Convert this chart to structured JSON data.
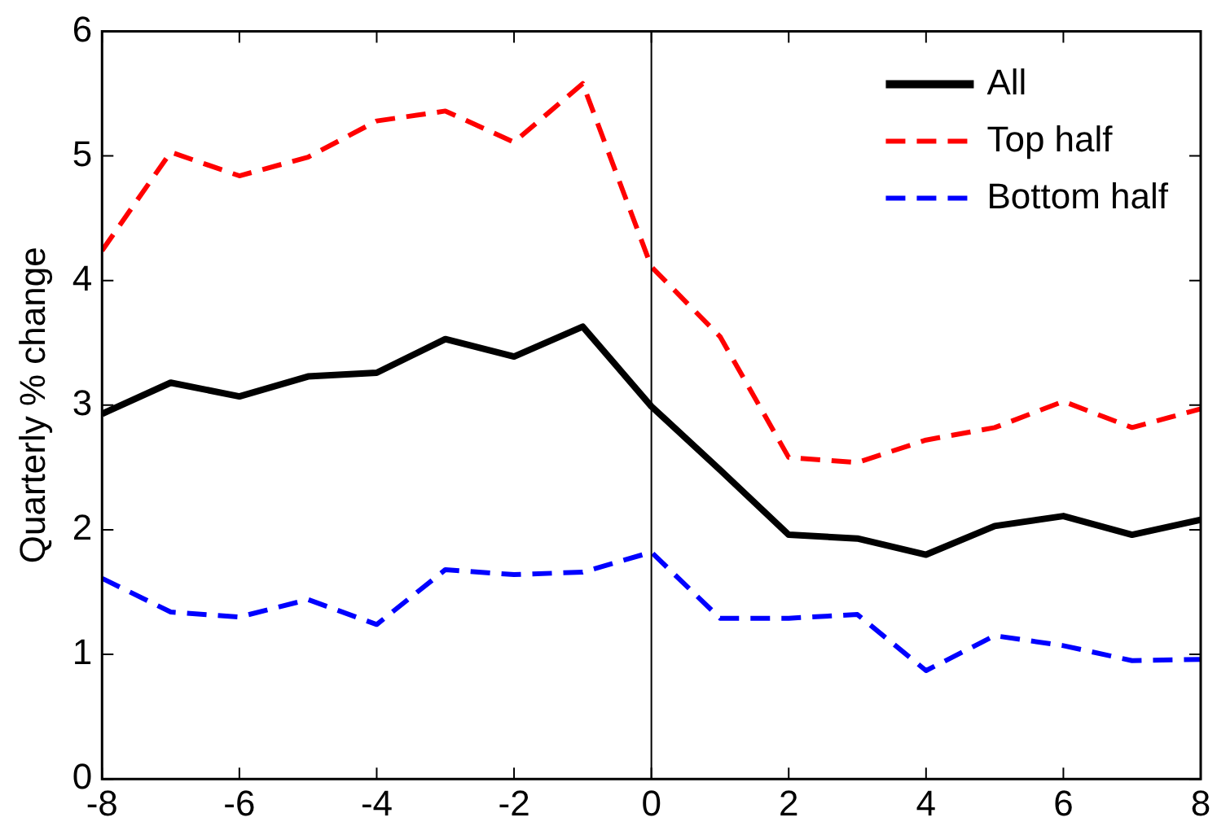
{
  "chart_data": {
    "type": "line",
    "ylabel": "Quarterly % change",
    "x": [
      -8,
      -7,
      -6,
      -5,
      -4,
      -3,
      -2,
      -1,
      0,
      1,
      2,
      3,
      4,
      5,
      6,
      7,
      8
    ],
    "series": [
      {
        "name": "All",
        "color": "#000000",
        "line_style": "solid",
        "values": [
          2.93,
          3.18,
          3.07,
          3.23,
          3.26,
          3.53,
          3.39,
          3.63,
          2.99,
          2.48,
          1.96,
          1.93,
          1.8,
          2.03,
          2.11,
          1.96,
          2.08
        ]
      },
      {
        "name": "Top half",
        "color": "#ff0000",
        "line_style": "dashed",
        "values": [
          4.24,
          5.03,
          4.84,
          4.99,
          5.28,
          5.36,
          5.11,
          5.58,
          4.11,
          3.55,
          2.58,
          2.54,
          2.72,
          2.82,
          3.03,
          2.82,
          2.97
        ]
      },
      {
        "name": "Bottom half",
        "color": "#0000ff",
        "line_style": "dashed",
        "values": [
          1.61,
          1.34,
          1.3,
          1.44,
          1.24,
          1.68,
          1.64,
          1.66,
          1.82,
          1.29,
          1.29,
          1.32,
          0.87,
          1.15,
          1.07,
          0.95,
          0.96
        ]
      }
    ],
    "xlim": [
      -8,
      8
    ],
    "xticks": [
      -8,
      -6,
      -4,
      -2,
      0,
      2,
      4,
      6,
      8
    ],
    "ylim": [
      0,
      6
    ],
    "yticks": [
      0,
      1,
      2,
      3,
      4,
      5,
      6
    ],
    "ref_lines": [
      {
        "axis": "x",
        "value": 0,
        "color": "#000000"
      }
    ],
    "grid": false,
    "legend": "top right",
    "marker": "none"
  }
}
